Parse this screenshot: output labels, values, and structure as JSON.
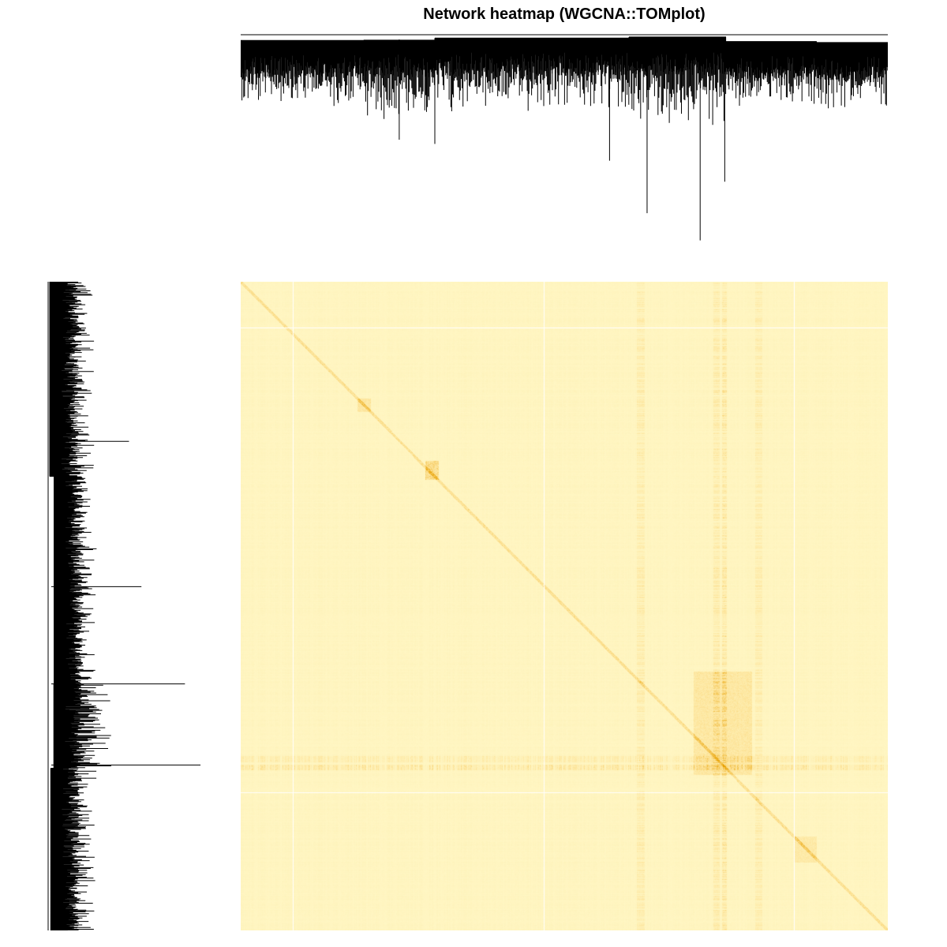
{
  "chart_data": {
    "type": "heatmap",
    "title": "Network heatmap (WGCNA::TOMplot)",
    "xlabel": "",
    "ylabel": "",
    "value_range": [
      0,
      1
    ],
    "colors": {
      "low": "#fff9c9",
      "mid": "#fde49a",
      "high": "#e8a000",
      "gap": "#ffffff",
      "dendrogram": "#000000"
    },
    "dendrogram_top": {
      "orientation": "top",
      "clusters": [
        {
          "x_start": 0.0,
          "x_end": 0.19,
          "typical_height": 0.25,
          "max_height": 0.45
        },
        {
          "x_start": 0.19,
          "x_end": 0.3,
          "typical_height": 0.3,
          "max_height": 0.52
        },
        {
          "x_start": 0.3,
          "x_end": 0.6,
          "typical_height": 0.28,
          "max_height": 0.6
        },
        {
          "x_start": 0.6,
          "x_end": 0.75,
          "typical_height": 0.35,
          "max_height": 0.85
        },
        {
          "x_start": 0.75,
          "x_end": 0.89,
          "typical_height": 0.25,
          "max_height": 0.4
        },
        {
          "x_start": 0.89,
          "x_end": 1.0,
          "typical_height": 0.25,
          "max_height": 0.42
        }
      ],
      "deep_branches": [
        {
          "x": 0.245,
          "height": 0.5
        },
        {
          "x": 0.3,
          "height": 0.52
        },
        {
          "x": 0.57,
          "height": 0.6
        },
        {
          "x": 0.628,
          "height": 0.85
        },
        {
          "x": 0.71,
          "height": 0.98
        },
        {
          "x": 0.748,
          "height": 0.7
        }
      ]
    },
    "dendrogram_left": {
      "orientation": "left",
      "clusters": [
        {
          "y_start": 0.0,
          "y_end": 0.3,
          "typical_length": 0.22,
          "max_length": 0.52
        },
        {
          "y_start": 0.3,
          "y_end": 0.62,
          "typical_length": 0.2,
          "max_length": 0.6
        },
        {
          "y_start": 0.62,
          "y_end": 0.75,
          "typical_length": 0.3,
          "max_length": 0.98
        },
        {
          "y_start": 0.75,
          "y_end": 1.0,
          "typical_length": 0.22,
          "max_length": 0.48
        }
      ],
      "deep_branches": [
        {
          "y": 0.246,
          "length": 0.52
        },
        {
          "y": 0.47,
          "length": 0.6
        },
        {
          "y": 0.62,
          "length": 0.88
        },
        {
          "y": 0.745,
          "length": 0.98
        }
      ]
    },
    "heatmap": {
      "background_value": 0.1,
      "diagonal_value": 0.45,
      "white_gap_columns": [
        0.081,
        0.468,
        0.855
      ],
      "white_gap_rows": [
        0.071,
        0.787
      ],
      "hot_columns": [
        {
          "pos": 0.618,
          "width": 0.012,
          "value": 0.3
        },
        {
          "pos": 0.735,
          "width": 0.01,
          "value": 0.35
        },
        {
          "pos": 0.747,
          "width": 0.008,
          "value": 0.45
        },
        {
          "pos": 0.8,
          "width": 0.01,
          "value": 0.3
        }
      ],
      "hot_rows": [
        {
          "pos": 0.748,
          "width": 0.008,
          "value": 0.45
        },
        {
          "pos": 0.735,
          "width": 0.01,
          "value": 0.3
        }
      ],
      "hot_blocks": [
        {
          "x0": 0.285,
          "x1": 0.305,
          "y0": 0.275,
          "y1": 0.305,
          "value": 0.55
        },
        {
          "x0": 0.7,
          "x1": 0.79,
          "y0": 0.6,
          "y1": 0.76,
          "value": 0.35
        },
        {
          "x0": 0.855,
          "x1": 0.89,
          "y0": 0.855,
          "y1": 0.895,
          "value": 0.3
        },
        {
          "x0": 0.18,
          "x1": 0.2,
          "y0": 0.18,
          "y1": 0.2,
          "value": 0.35
        }
      ]
    }
  }
}
